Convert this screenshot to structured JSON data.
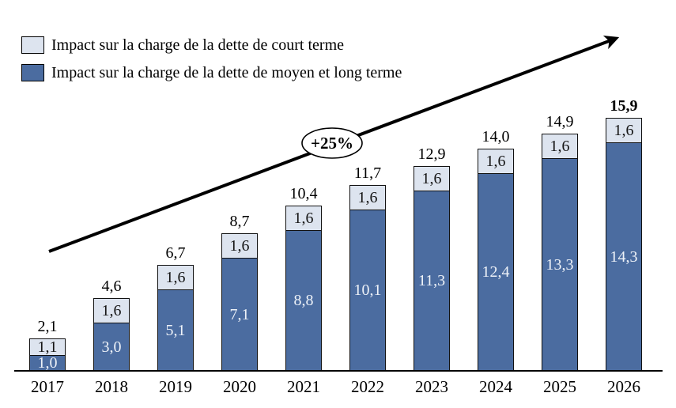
{
  "legend": {
    "items": [
      {
        "label": "Impact sur la charge de la dette de court terme",
        "color": "#dde4ef"
      },
      {
        "label": "Impact sur la charge de la dette de moyen et long terme",
        "color": "#4b6ca0"
      }
    ]
  },
  "annotation": {
    "text": "+25%"
  },
  "chart_data": {
    "type": "bar",
    "stacked": true,
    "title": "",
    "xlabel": "",
    "ylabel": "",
    "legend_position": "top-left",
    "grid": false,
    "categories": [
      "2017",
      "2018",
      "2019",
      "2020",
      "2021",
      "2022",
      "2023",
      "2024",
      "2025",
      "2026"
    ],
    "series": [
      {
        "name": "Impact sur la charge de la dette de moyen et long terme",
        "color": "#4b6ca0",
        "label_color": "#eef2f8",
        "values": [
          1.0,
          3.0,
          5.1,
          7.1,
          8.8,
          10.1,
          11.3,
          12.4,
          13.3,
          14.3
        ],
        "labels": [
          "1,0",
          "3,0",
          "5,1",
          "7,1",
          "8,8",
          "10,1",
          "11,3",
          "12,4",
          "13,3",
          "14,3"
        ]
      },
      {
        "name": "Impact sur la charge de la dette de court terme",
        "color": "#dde4ef",
        "label_color": "#151515",
        "values": [
          1.1,
          1.6,
          1.6,
          1.6,
          1.6,
          1.6,
          1.6,
          1.6,
          1.6,
          1.6
        ],
        "labels": [
          "1,1",
          "1,6",
          "1,6",
          "1,6",
          "1,6",
          "1,6",
          "1,6",
          "1,6",
          "1,6",
          "1,6"
        ]
      }
    ],
    "totals": [
      2.1,
      4.6,
      6.7,
      8.7,
      10.4,
      11.7,
      12.9,
      14.0,
      14.9,
      15.9
    ],
    "total_labels": [
      "2,1",
      "4,6",
      "6,7",
      "8,7",
      "10,4",
      "11,7",
      "12,9",
      "14,0",
      "14,9",
      "15,9"
    ],
    "final_total_bold": true,
    "annotation": "+25%"
  }
}
